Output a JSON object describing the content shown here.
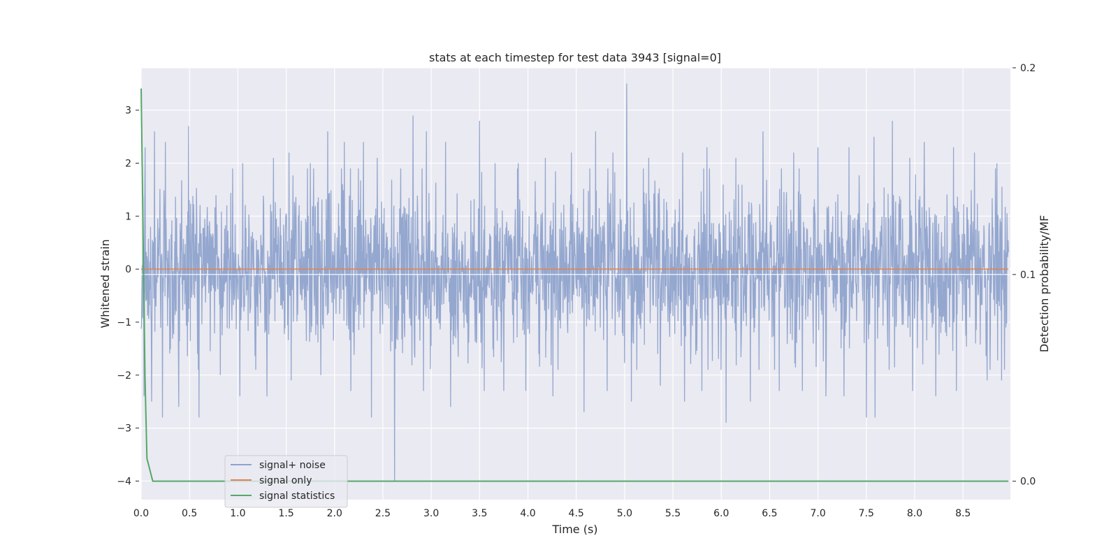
{
  "chart_data": {
    "type": "line",
    "title": "stats at each timestep for test data 3943 [signal=0]",
    "xlabel": "Time (s)",
    "ylabel": "Whitened strain",
    "y2label": "Detection probability/MF",
    "xlim": [
      0,
      8.99
    ],
    "ylim": [
      -4.35,
      3.8
    ],
    "y2lim": [
      -0.0089,
      0.2
    ],
    "xticks": [
      "0.0",
      "0.5",
      "1.0",
      "1.5",
      "2.0",
      "2.5",
      "3.0",
      "3.5",
      "4.0",
      "4.5",
      "5.0",
      "5.5",
      "6.0",
      "6.5",
      "7.0",
      "7.5",
      "8.0",
      "8.5"
    ],
    "yticks": [
      "3",
      "2",
      "1",
      "0",
      "−1",
      "−2",
      "−3",
      "−4"
    ],
    "y2ticks": [
      "0.2",
      "0.1",
      "0.0"
    ],
    "grid": true,
    "legend_position": "lower-left",
    "colors": {
      "background": "#eaeaf2",
      "grid": "#ffffff",
      "signal_noise": "#8fa3cc",
      "signal_only": "#dd8452",
      "signal_stats": "#55a868"
    },
    "series": [
      {
        "name": "signal+ noise",
        "axis": "left",
        "description_note": "",
        "spikes_up": [
          [
            0.04,
            2.3
          ],
          [
            0.14,
            2.6
          ],
          [
            0.25,
            2.4
          ],
          [
            0.49,
            2.7
          ],
          [
            0.6,
            2.0
          ],
          [
            0.82,
            1.9
          ],
          [
            1.05,
            2.0
          ],
          [
            1.37,
            2.1
          ],
          [
            1.53,
            2.2
          ],
          [
            1.75,
            2.0
          ],
          [
            1.93,
            2.6
          ],
          [
            2.1,
            2.4
          ],
          [
            2.3,
            2.4
          ],
          [
            2.44,
            2.1
          ],
          [
            2.62,
            2.2
          ],
          [
            2.81,
            2.9
          ],
          [
            2.95,
            2.6
          ],
          [
            3.15,
            2.4
          ],
          [
            3.5,
            2.8
          ],
          [
            3.66,
            2.0
          ],
          [
            3.9,
            2.0
          ],
          [
            4.18,
            2.1
          ],
          [
            4.45,
            2.2
          ],
          [
            4.7,
            2.6
          ],
          [
            4.88,
            2.2
          ],
          [
            5.02,
            3.5
          ],
          [
            5.25,
            2.1
          ],
          [
            5.6,
            2.2
          ],
          [
            5.85,
            2.3
          ],
          [
            6.15,
            2.1
          ],
          [
            6.43,
            2.6
          ],
          [
            6.75,
            2.2
          ],
          [
            7.0,
            2.3
          ],
          [
            7.32,
            2.3
          ],
          [
            7.58,
            2.5
          ],
          [
            7.77,
            2.8
          ],
          [
            7.95,
            2.1
          ],
          [
            8.1,
            2.4
          ],
          [
            8.4,
            2.3
          ],
          [
            8.62,
            2.2
          ],
          [
            8.85,
            2.0
          ]
        ],
        "spikes_down": [
          [
            0.03,
            -2.4
          ],
          [
            0.11,
            -2.5
          ],
          [
            0.22,
            -2.8
          ],
          [
            0.39,
            -2.6
          ],
          [
            0.6,
            -2.8
          ],
          [
            0.82,
            -2.0
          ],
          [
            1.02,
            -2.4
          ],
          [
            1.3,
            -2.4
          ],
          [
            1.55,
            -2.1
          ],
          [
            1.86,
            -2.0
          ],
          [
            2.17,
            -2.3
          ],
          [
            2.38,
            -2.8
          ],
          [
            2.62,
            -4.0
          ],
          [
            2.92,
            -2.3
          ],
          [
            3.2,
            -2.6
          ],
          [
            3.55,
            -2.3
          ],
          [
            3.75,
            -2.3
          ],
          [
            3.98,
            -2.3
          ],
          [
            4.26,
            -2.4
          ],
          [
            4.58,
            -2.7
          ],
          [
            4.82,
            -2.3
          ],
          [
            5.07,
            -2.5
          ],
          [
            5.37,
            -2.2
          ],
          [
            5.62,
            -2.5
          ],
          [
            5.8,
            -2.3
          ],
          [
            6.05,
            -2.9
          ],
          [
            6.3,
            -2.5
          ],
          [
            6.6,
            -2.3
          ],
          [
            6.84,
            -2.3
          ],
          [
            7.08,
            -2.4
          ],
          [
            7.27,
            -2.4
          ],
          [
            7.5,
            -2.8
          ],
          [
            7.59,
            -2.8
          ],
          [
            7.98,
            -2.3
          ],
          [
            8.22,
            -2.4
          ],
          [
            8.43,
            -2.3
          ],
          [
            8.75,
            -2.1
          ],
          [
            8.9,
            -2.1
          ]
        ]
      },
      {
        "name": "signal only",
        "axis": "left",
        "x": [
          0,
          8.97
        ],
        "y": [
          0,
          0
        ]
      },
      {
        "name": "signal statistics",
        "axis": "right",
        "x": [
          0.0,
          0.02,
          0.04,
          0.06,
          0.12,
          8.97
        ],
        "y": [
          0.19,
          0.12,
          0.05,
          0.011,
          0.0,
          0.0
        ]
      }
    ]
  }
}
